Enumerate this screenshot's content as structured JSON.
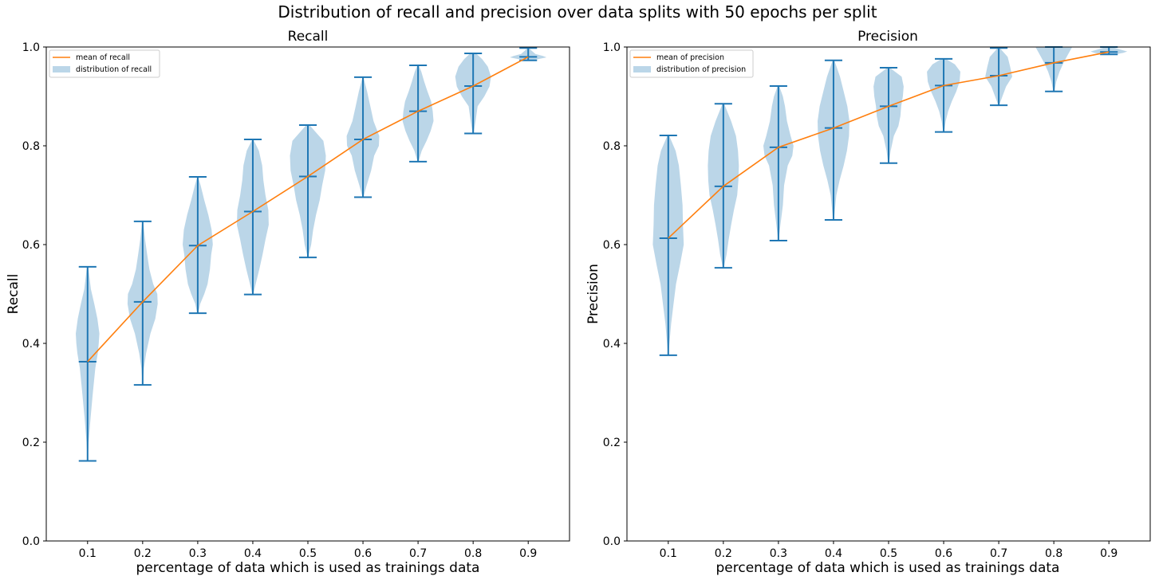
{
  "figure": {
    "suptitle": "Distribution of recall and precision over data splits with 50 epochs per split"
  },
  "colors": {
    "violin_fill": "#1f77b4",
    "violin_alpha": 0.3,
    "bar_color": "#1f77b4",
    "mean_line": "#ff7f0e",
    "axes_edge": "#000000"
  },
  "chart_data": [
    {
      "type": "violin",
      "title": "Recall",
      "xlabel": "percentage of data which is used as trainings data",
      "ylabel": "Recall",
      "ylim": [
        0,
        1
      ],
      "yticks": [
        0.0,
        0.2,
        0.4,
        0.6,
        0.8,
        1.0
      ],
      "ytick_labels": [
        "0.0",
        "0.2",
        "0.4",
        "0.6",
        "0.8",
        "1.0"
      ],
      "categories": [
        "0.1",
        "0.2",
        "0.3",
        "0.4",
        "0.5",
        "0.6",
        "0.7",
        "0.8",
        "0.9"
      ],
      "legend": {
        "placement": "top-left",
        "line_label": "mean of recall",
        "patch_label": "distribution of recall"
      },
      "mean": [
        0.363,
        0.484,
        0.598,
        0.667,
        0.738,
        0.813,
        0.87,
        0.921,
        0.98
      ],
      "min": [
        0.162,
        0.316,
        0.461,
        0.499,
        0.574,
        0.696,
        0.768,
        0.825,
        0.973
      ],
      "max": [
        0.555,
        0.647,
        0.737,
        0.813,
        0.842,
        0.939,
        0.963,
        0.987,
        0.998
      ],
      "violins": [
        [
          [
            0.162,
            0.002
          ],
          [
            0.2,
            0.05
          ],
          [
            0.25,
            0.15
          ],
          [
            0.3,
            0.26
          ],
          [
            0.35,
            0.38
          ],
          [
            0.38,
            0.5
          ],
          [
            0.4,
            0.55
          ],
          [
            0.42,
            0.58
          ],
          [
            0.45,
            0.48
          ],
          [
            0.48,
            0.33
          ],
          [
            0.51,
            0.16
          ],
          [
            0.555,
            0.03
          ]
        ],
        [
          [
            0.316,
            0.005
          ],
          [
            0.35,
            0.06
          ],
          [
            0.38,
            0.17
          ],
          [
            0.42,
            0.38
          ],
          [
            0.45,
            0.62
          ],
          [
            0.48,
            0.74
          ],
          [
            0.5,
            0.72
          ],
          [
            0.52,
            0.52
          ],
          [
            0.55,
            0.33
          ],
          [
            0.58,
            0.22
          ],
          [
            0.61,
            0.12
          ],
          [
            0.647,
            0.02
          ]
        ],
        [
          [
            0.461,
            0.02
          ],
          [
            0.48,
            0.12
          ],
          [
            0.5,
            0.32
          ],
          [
            0.52,
            0.48
          ],
          [
            0.55,
            0.6
          ],
          [
            0.58,
            0.66
          ],
          [
            0.6,
            0.74
          ],
          [
            0.63,
            0.68
          ],
          [
            0.66,
            0.52
          ],
          [
            0.69,
            0.32
          ],
          [
            0.72,
            0.14
          ],
          [
            0.737,
            0.02
          ]
        ],
        [
          [
            0.499,
            0.02
          ],
          [
            0.52,
            0.14
          ],
          [
            0.55,
            0.32
          ],
          [
            0.58,
            0.48
          ],
          [
            0.61,
            0.62
          ],
          [
            0.64,
            0.78
          ],
          [
            0.67,
            0.76
          ],
          [
            0.7,
            0.62
          ],
          [
            0.73,
            0.52
          ],
          [
            0.76,
            0.46
          ],
          [
            0.79,
            0.3
          ],
          [
            0.813,
            0.02
          ]
        ],
        [
          [
            0.574,
            0.01
          ],
          [
            0.6,
            0.16
          ],
          [
            0.63,
            0.26
          ],
          [
            0.66,
            0.4
          ],
          [
            0.69,
            0.58
          ],
          [
            0.72,
            0.7
          ],
          [
            0.75,
            0.85
          ],
          [
            0.78,
            0.88
          ],
          [
            0.81,
            0.76
          ],
          [
            0.842,
            0.08
          ]
        ],
        [
          [
            0.696,
            0.02
          ],
          [
            0.72,
            0.18
          ],
          [
            0.75,
            0.4
          ],
          [
            0.78,
            0.55
          ],
          [
            0.8,
            0.78
          ],
          [
            0.82,
            0.8
          ],
          [
            0.85,
            0.52
          ],
          [
            0.88,
            0.36
          ],
          [
            0.91,
            0.2
          ],
          [
            0.939,
            0.02
          ]
        ],
        [
          [
            0.768,
            0.02
          ],
          [
            0.79,
            0.18
          ],
          [
            0.81,
            0.42
          ],
          [
            0.83,
            0.62
          ],
          [
            0.85,
            0.76
          ],
          [
            0.87,
            0.72
          ],
          [
            0.89,
            0.64
          ],
          [
            0.91,
            0.46
          ],
          [
            0.93,
            0.3
          ],
          [
            0.95,
            0.16
          ],
          [
            0.963,
            0.03
          ]
        ],
        [
          [
            0.825,
            0.02
          ],
          [
            0.85,
            0.12
          ],
          [
            0.88,
            0.22
          ],
          [
            0.9,
            0.55
          ],
          [
            0.92,
            0.8
          ],
          [
            0.94,
            0.88
          ],
          [
            0.96,
            0.72
          ],
          [
            0.975,
            0.45
          ],
          [
            0.987,
            0.15
          ]
        ],
        [
          [
            0.973,
            0.2
          ],
          [
            0.976,
            0.55
          ],
          [
            0.979,
            0.9
          ],
          [
            0.982,
            0.72
          ],
          [
            0.986,
            0.35
          ],
          [
            0.998,
            0.02
          ]
        ]
      ]
    },
    {
      "type": "violin",
      "title": "Precision",
      "xlabel": "percentage of data which is used as trainings data",
      "ylabel": "Precision",
      "ylim": [
        0,
        1
      ],
      "yticks": [
        0.0,
        0.2,
        0.4,
        0.6,
        0.8,
        1.0
      ],
      "ytick_labels": [
        "0.0",
        "0.2",
        "0.4",
        "0.6",
        "0.8",
        "1.0"
      ],
      "categories": [
        "0.1",
        "0.2",
        "0.3",
        "0.4",
        "0.5",
        "0.6",
        "0.7",
        "0.8",
        "0.9"
      ],
      "legend": {
        "placement": "top-left",
        "line_label": "mean of precision",
        "patch_label": "distribution of precision"
      },
      "mean": [
        0.613,
        0.718,
        0.797,
        0.836,
        0.88,
        0.922,
        0.942,
        0.968,
        0.99
      ],
      "min": [
        0.376,
        0.553,
        0.608,
        0.65,
        0.765,
        0.828,
        0.882,
        0.91,
        0.985
      ],
      "max": [
        0.821,
        0.885,
        0.921,
        0.973,
        0.958,
        0.976,
        0.998,
        1.0,
        1.0
      ],
      "violins": [
        [
          [
            0.376,
            0.01
          ],
          [
            0.4,
            0.06
          ],
          [
            0.44,
            0.14
          ],
          [
            0.48,
            0.26
          ],
          [
            0.52,
            0.38
          ],
          [
            0.56,
            0.58
          ],
          [
            0.6,
            0.76
          ],
          [
            0.64,
            0.72
          ],
          [
            0.68,
            0.7
          ],
          [
            0.72,
            0.62
          ],
          [
            0.76,
            0.52
          ],
          [
            0.79,
            0.36
          ],
          [
            0.821,
            0.04
          ]
        ],
        [
          [
            0.553,
            0.02
          ],
          [
            0.58,
            0.16
          ],
          [
            0.61,
            0.26
          ],
          [
            0.64,
            0.38
          ],
          [
            0.67,
            0.52
          ],
          [
            0.7,
            0.68
          ],
          [
            0.73,
            0.74
          ],
          [
            0.76,
            0.76
          ],
          [
            0.79,
            0.72
          ],
          [
            0.82,
            0.62
          ],
          [
            0.85,
            0.38
          ],
          [
            0.885,
            0.04
          ]
        ],
        [
          [
            0.608,
            0.01
          ],
          [
            0.64,
            0.1
          ],
          [
            0.68,
            0.22
          ],
          [
            0.72,
            0.28
          ],
          [
            0.76,
            0.46
          ],
          [
            0.78,
            0.68
          ],
          [
            0.8,
            0.74
          ],
          [
            0.82,
            0.6
          ],
          [
            0.85,
            0.42
          ],
          [
            0.88,
            0.32
          ],
          [
            0.9,
            0.22
          ],
          [
            0.921,
            0.04
          ]
        ],
        [
          [
            0.65,
            0.02
          ],
          [
            0.7,
            0.14
          ],
          [
            0.73,
            0.3
          ],
          [
            0.76,
            0.5
          ],
          [
            0.79,
            0.66
          ],
          [
            0.82,
            0.76
          ],
          [
            0.85,
            0.78
          ],
          [
            0.88,
            0.68
          ],
          [
            0.91,
            0.5
          ],
          [
            0.94,
            0.32
          ],
          [
            0.973,
            0.04
          ]
        ],
        [
          [
            0.765,
            0.02
          ],
          [
            0.79,
            0.1
          ],
          [
            0.82,
            0.26
          ],
          [
            0.84,
            0.48
          ],
          [
            0.86,
            0.58
          ],
          [
            0.88,
            0.62
          ],
          [
            0.9,
            0.7
          ],
          [
            0.92,
            0.74
          ],
          [
            0.94,
            0.64
          ],
          [
            0.958,
            0.06
          ]
        ],
        [
          [
            0.828,
            0.02
          ],
          [
            0.85,
            0.1
          ],
          [
            0.87,
            0.22
          ],
          [
            0.89,
            0.4
          ],
          [
            0.91,
            0.62
          ],
          [
            0.93,
            0.78
          ],
          [
            0.95,
            0.82
          ],
          [
            0.965,
            0.55
          ],
          [
            0.976,
            0.1
          ]
        ],
        [
          [
            0.882,
            0.02
          ],
          [
            0.9,
            0.18
          ],
          [
            0.92,
            0.36
          ],
          [
            0.94,
            0.66
          ],
          [
            0.96,
            0.56
          ],
          [
            0.98,
            0.44
          ],
          [
            0.998,
            0.05
          ]
        ],
        [
          [
            0.91,
            0.02
          ],
          [
            0.93,
            0.12
          ],
          [
            0.95,
            0.28
          ],
          [
            0.97,
            0.5
          ],
          [
            0.985,
            0.7
          ],
          [
            1.0,
            0.9
          ]
        ],
        [
          [
            0.985,
            0.3
          ],
          [
            0.988,
            0.7
          ],
          [
            0.991,
            0.9
          ],
          [
            0.995,
            0.55
          ],
          [
            1.0,
            0.15
          ]
        ]
      ]
    }
  ]
}
